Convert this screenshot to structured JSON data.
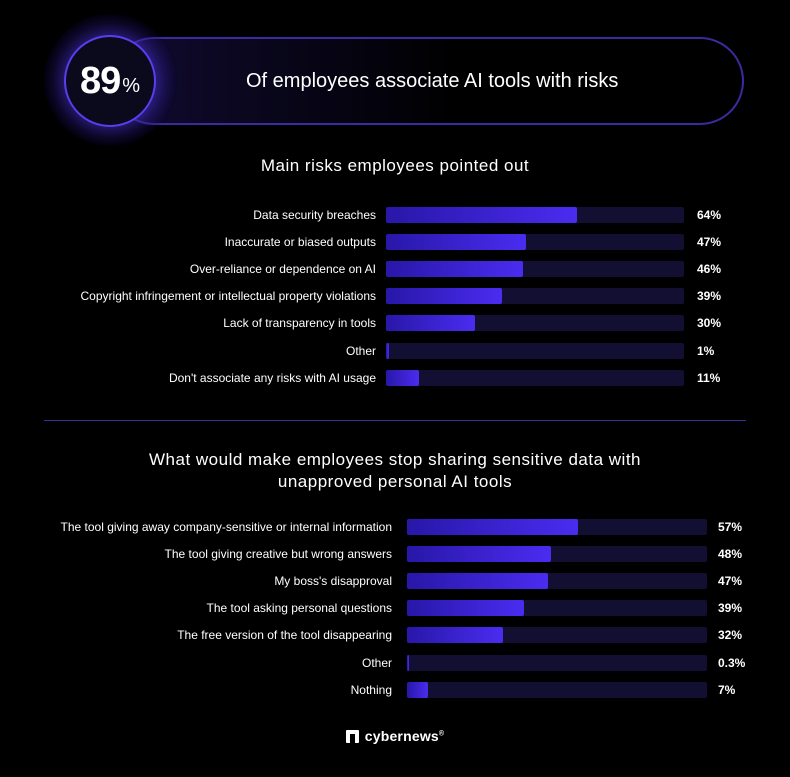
{
  "hero": {
    "value": "89",
    "unit": "%",
    "text": "Of employees associate AI tools with risks"
  },
  "chart_data": [
    {
      "type": "bar",
      "orientation": "horizontal",
      "title": "Main risks employees pointed out",
      "categories": [
        "Data security breaches",
        "Inaccurate or biased outputs",
        "Over-reliance or dependence on AI",
        "Copyright infringement or intellectual property violations",
        "Lack of transparency in tools",
        "Other",
        "Don't associate any risks with AI usage"
      ],
      "values": [
        64,
        47,
        46,
        39,
        30,
        1,
        11
      ],
      "value_labels": [
        "64%",
        "47%",
        "46%",
        "39%",
        "30%",
        "1%",
        "11%"
      ],
      "xlim": [
        0,
        100
      ],
      "grid": false
    },
    {
      "type": "bar",
      "orientation": "horizontal",
      "title": "What would make employees stop sharing sensitive data with unapproved personal AI tools",
      "categories": [
        "The tool giving away company-sensitive or internal information",
        "The tool giving creative but wrong answers",
        "My boss's disapproval",
        "The tool asking personal questions",
        "The free version of the tool disappearing",
        "Other",
        "Nothing"
      ],
      "values": [
        57,
        48,
        47,
        39,
        32,
        0.3,
        7
      ],
      "value_labels": [
        "57%",
        "48%",
        "47%",
        "39%",
        "32%",
        "0.3%",
        "7%"
      ],
      "xlim": [
        0,
        100
      ],
      "grid": false
    }
  ],
  "brand": {
    "name": "cybernews",
    "reg": "®"
  }
}
